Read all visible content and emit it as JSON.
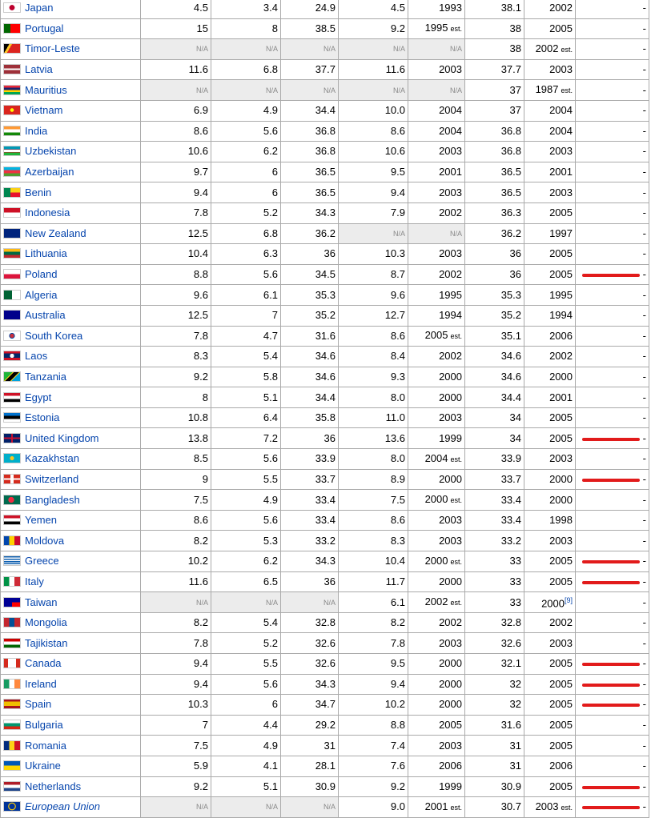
{
  "rows": [
    {
      "country": "Japan",
      "flag": "jp",
      "v1": "4.5",
      "v2": "3.4",
      "v3": "24.9",
      "v4": "4.5",
      "y1": "1993",
      "y1est": "",
      "g": "38.1",
      "y2": "2002",
      "y2est": "",
      "y2ref": "",
      "mark": "-",
      "hl": false
    },
    {
      "country": "Portugal",
      "flag": "pt",
      "v1": "15",
      "v2": "8",
      "v3": "38.5",
      "v4": "9.2",
      "y1": "1995",
      "y1est": "est.",
      "g": "38",
      "y2": "2005",
      "y2est": "",
      "y2ref": "",
      "mark": "-",
      "hl": false
    },
    {
      "country": "Timor-Leste",
      "flag": "tl",
      "v1": "N/A",
      "v2": "N/A",
      "v3": "N/A",
      "v4": "N/A",
      "y1": "N/A",
      "y1est": "",
      "g": "38",
      "y2": "2002",
      "y2est": "est.",
      "y2ref": "",
      "mark": "-",
      "hl": false
    },
    {
      "country": "Latvia",
      "flag": "lv",
      "v1": "11.6",
      "v2": "6.8",
      "v3": "37.7",
      "v4": "11.6",
      "y1": "2003",
      "y1est": "",
      "g": "37.7",
      "y2": "2003",
      "y2est": "",
      "y2ref": "",
      "mark": "-",
      "hl": false
    },
    {
      "country": "Mauritius",
      "flag": "mu",
      "v1": "N/A",
      "v2": "N/A",
      "v3": "N/A",
      "v4": "N/A",
      "y1": "N/A",
      "y1est": "",
      "g": "37",
      "y2": "1987",
      "y2est": "est.",
      "y2ref": "",
      "mark": "-",
      "hl": false
    },
    {
      "country": "Vietnam",
      "flag": "vn",
      "v1": "6.9",
      "v2": "4.9",
      "v3": "34.4",
      "v4": "10.0",
      "y1": "2004",
      "y1est": "",
      "g": "37",
      "y2": "2004",
      "y2est": "",
      "y2ref": "",
      "mark": "-",
      "hl": false
    },
    {
      "country": "India",
      "flag": "in",
      "v1": "8.6",
      "v2": "5.6",
      "v3": "36.8",
      "v4": "8.6",
      "y1": "2004",
      "y1est": "",
      "g": "36.8",
      "y2": "2004",
      "y2est": "",
      "y2ref": "",
      "mark": "-",
      "hl": false
    },
    {
      "country": "Uzbekistan",
      "flag": "uz",
      "v1": "10.6",
      "v2": "6.2",
      "v3": "36.8",
      "v4": "10.6",
      "y1": "2003",
      "y1est": "",
      "g": "36.8",
      "y2": "2003",
      "y2est": "",
      "y2ref": "",
      "mark": "-",
      "hl": false
    },
    {
      "country": "Azerbaijan",
      "flag": "az",
      "v1": "9.7",
      "v2": "6",
      "v3": "36.5",
      "v4": "9.5",
      "y1": "2001",
      "y1est": "",
      "g": "36.5",
      "y2": "2001",
      "y2est": "",
      "y2ref": "",
      "mark": "-",
      "hl": false
    },
    {
      "country": "Benin",
      "flag": "bj",
      "v1": "9.4",
      "v2": "6",
      "v3": "36.5",
      "v4": "9.4",
      "y1": "2003",
      "y1est": "",
      "g": "36.5",
      "y2": "2003",
      "y2est": "",
      "y2ref": "",
      "mark": "-",
      "hl": false
    },
    {
      "country": "Indonesia",
      "flag": "id",
      "v1": "7.8",
      "v2": "5.2",
      "v3": "34.3",
      "v4": "7.9",
      "y1": "2002",
      "y1est": "",
      "g": "36.3",
      "y2": "2005",
      "y2est": "",
      "y2ref": "",
      "mark": "-",
      "hl": false
    },
    {
      "country": "New Zealand",
      "flag": "nz",
      "v1": "12.5",
      "v2": "6.8",
      "v3": "36.2",
      "v4": "N/A",
      "y1": "N/A",
      "y1est": "",
      "g": "36.2",
      "y2": "1997",
      "y2est": "",
      "y2ref": "",
      "mark": "-",
      "hl": false
    },
    {
      "country": "Lithuania",
      "flag": "lt",
      "v1": "10.4",
      "v2": "6.3",
      "v3": "36",
      "v4": "10.3",
      "y1": "2003",
      "y1est": "",
      "g": "36",
      "y2": "2005",
      "y2est": "",
      "y2ref": "",
      "mark": "-",
      "hl": false
    },
    {
      "country": "Poland",
      "flag": "pl",
      "v1": "8.8",
      "v2": "5.6",
      "v3": "34.5",
      "v4": "8.7",
      "y1": "2002",
      "y1est": "",
      "g": "36",
      "y2": "2005",
      "y2est": "",
      "y2ref": "",
      "mark": "-",
      "hl": true
    },
    {
      "country": "Algeria",
      "flag": "dz",
      "v1": "9.6",
      "v2": "6.1",
      "v3": "35.3",
      "v4": "9.6",
      "y1": "1995",
      "y1est": "",
      "g": "35.3",
      "y2": "1995",
      "y2est": "",
      "y2ref": "",
      "mark": "-",
      "hl": false
    },
    {
      "country": "Australia",
      "flag": "au",
      "v1": "12.5",
      "v2": "7",
      "v3": "35.2",
      "v4": "12.7",
      "y1": "1994",
      "y1est": "",
      "g": "35.2",
      "y2": "1994",
      "y2est": "",
      "y2ref": "",
      "mark": "-",
      "hl": false
    },
    {
      "country": "South Korea",
      "flag": "kr",
      "v1": "7.8",
      "v2": "4.7",
      "v3": "31.6",
      "v4": "8.6",
      "y1": "2005",
      "y1est": "est.",
      "g": "35.1",
      "y2": "2006",
      "y2est": "",
      "y2ref": "",
      "mark": "-",
      "hl": false
    },
    {
      "country": "Laos",
      "flag": "la",
      "v1": "8.3",
      "v2": "5.4",
      "v3": "34.6",
      "v4": "8.4",
      "y1": "2002",
      "y1est": "",
      "g": "34.6",
      "y2": "2002",
      "y2est": "",
      "y2ref": "",
      "mark": "-",
      "hl": false
    },
    {
      "country": "Tanzania",
      "flag": "tz",
      "v1": "9.2",
      "v2": "5.8",
      "v3": "34.6",
      "v4": "9.3",
      "y1": "2000",
      "y1est": "",
      "g": "34.6",
      "y2": "2000",
      "y2est": "",
      "y2ref": "",
      "mark": "-",
      "hl": false
    },
    {
      "country": "Egypt",
      "flag": "eg",
      "v1": "8",
      "v2": "5.1",
      "v3": "34.4",
      "v4": "8.0",
      "y1": "2000",
      "y1est": "",
      "g": "34.4",
      "y2": "2001",
      "y2est": "",
      "y2ref": "",
      "mark": "-",
      "hl": false
    },
    {
      "country": "Estonia",
      "flag": "ee",
      "v1": "10.8",
      "v2": "6.4",
      "v3": "35.8",
      "v4": "11.0",
      "y1": "2003",
      "y1est": "",
      "g": "34",
      "y2": "2005",
      "y2est": "",
      "y2ref": "",
      "mark": "-",
      "hl": false
    },
    {
      "country": "United Kingdom",
      "flag": "gb",
      "v1": "13.8",
      "v2": "7.2",
      "v3": "36",
      "v4": "13.6",
      "y1": "1999",
      "y1est": "",
      "g": "34",
      "y2": "2005",
      "y2est": "",
      "y2ref": "",
      "mark": "-",
      "hl": true
    },
    {
      "country": "Kazakhstan",
      "flag": "kz",
      "v1": "8.5",
      "v2": "5.6",
      "v3": "33.9",
      "v4": "8.0",
      "y1": "2004",
      "y1est": "est.",
      "g": "33.9",
      "y2": "2003",
      "y2est": "",
      "y2ref": "",
      "mark": "-",
      "hl": false
    },
    {
      "country": "Switzerland",
      "flag": "ch",
      "v1": "9",
      "v2": "5.5",
      "v3": "33.7",
      "v4": "8.9",
      "y1": "2000",
      "y1est": "",
      "g": "33.7",
      "y2": "2000",
      "y2est": "",
      "y2ref": "",
      "mark": "-",
      "hl": true
    },
    {
      "country": "Bangladesh",
      "flag": "bd",
      "v1": "7.5",
      "v2": "4.9",
      "v3": "33.4",
      "v4": "7.5",
      "y1": "2000",
      "y1est": "est.",
      "g": "33.4",
      "y2": "2000",
      "y2est": "",
      "y2ref": "",
      "mark": "-",
      "hl": false
    },
    {
      "country": "Yemen",
      "flag": "ye",
      "v1": "8.6",
      "v2": "5.6",
      "v3": "33.4",
      "v4": "8.6",
      "y1": "2003",
      "y1est": "",
      "g": "33.4",
      "y2": "1998",
      "y2est": "",
      "y2ref": "",
      "mark": "-",
      "hl": false
    },
    {
      "country": "Moldova",
      "flag": "md",
      "v1": "8.2",
      "v2": "5.3",
      "v3": "33.2",
      "v4": "8.3",
      "y1": "2003",
      "y1est": "",
      "g": "33.2",
      "y2": "2003",
      "y2est": "",
      "y2ref": "",
      "mark": "-",
      "hl": false
    },
    {
      "country": "Greece",
      "flag": "gr",
      "v1": "10.2",
      "v2": "6.2",
      "v3": "34.3",
      "v4": "10.4",
      "y1": "2000",
      "y1est": "est.",
      "g": "33",
      "y2": "2005",
      "y2est": "",
      "y2ref": "",
      "mark": "-",
      "hl": true
    },
    {
      "country": "Italy",
      "flag": "it",
      "v1": "11.6",
      "v2": "6.5",
      "v3": "36",
      "v4": "11.7",
      "y1": "2000",
      "y1est": "",
      "g": "33",
      "y2": "2005",
      "y2est": "",
      "y2ref": "",
      "mark": "-",
      "hl": true
    },
    {
      "country": "Taiwan",
      "flag": "tw",
      "v1": "N/A",
      "v2": "N/A",
      "v3": "N/A",
      "v4": "6.1",
      "y1": "2002",
      "y1est": "est.",
      "g": "33",
      "y2": "2000",
      "y2est": "",
      "y2ref": "[9]",
      "mark": "-",
      "hl": false
    },
    {
      "country": "Mongolia",
      "flag": "mn",
      "v1": "8.2",
      "v2": "5.4",
      "v3": "32.8",
      "v4": "8.2",
      "y1": "2002",
      "y1est": "",
      "g": "32.8",
      "y2": "2002",
      "y2est": "",
      "y2ref": "",
      "mark": "-",
      "hl": false
    },
    {
      "country": "Tajikistan",
      "flag": "tj",
      "v1": "7.8",
      "v2": "5.2",
      "v3": "32.6",
      "v4": "7.8",
      "y1": "2003",
      "y1est": "",
      "g": "32.6",
      "y2": "2003",
      "y2est": "",
      "y2ref": "",
      "mark": "-",
      "hl": false
    },
    {
      "country": "Canada",
      "flag": "ca",
      "v1": "9.4",
      "v2": "5.5",
      "v3": "32.6",
      "v4": "9.5",
      "y1": "2000",
      "y1est": "",
      "g": "32.1",
      "y2": "2005",
      "y2est": "",
      "y2ref": "",
      "mark": "-",
      "hl": true
    },
    {
      "country": "Ireland",
      "flag": "ie",
      "v1": "9.4",
      "v2": "5.6",
      "v3": "34.3",
      "v4": "9.4",
      "y1": "2000",
      "y1est": "",
      "g": "32",
      "y2": "2005",
      "y2est": "",
      "y2ref": "",
      "mark": "-",
      "hl": true
    },
    {
      "country": "Spain",
      "flag": "es",
      "v1": "10.3",
      "v2": "6",
      "v3": "34.7",
      "v4": "10.2",
      "y1": "2000",
      "y1est": "",
      "g": "32",
      "y2": "2005",
      "y2est": "",
      "y2ref": "",
      "mark": "-",
      "hl": true
    },
    {
      "country": "Bulgaria",
      "flag": "bg",
      "v1": "7",
      "v2": "4.4",
      "v3": "29.2",
      "v4": "8.8",
      "y1": "2005",
      "y1est": "",
      "g": "31.6",
      "y2": "2005",
      "y2est": "",
      "y2ref": "",
      "mark": "-",
      "hl": false
    },
    {
      "country": "Romania",
      "flag": "ro",
      "v1": "7.5",
      "v2": "4.9",
      "v3": "31",
      "v4": "7.4",
      "y1": "2003",
      "y1est": "",
      "g": "31",
      "y2": "2005",
      "y2est": "",
      "y2ref": "",
      "mark": "-",
      "hl": false
    },
    {
      "country": "Ukraine",
      "flag": "ua",
      "v1": "5.9",
      "v2": "4.1",
      "v3": "28.1",
      "v4": "7.6",
      "y1": "2006",
      "y1est": "",
      "g": "31",
      "y2": "2006",
      "y2est": "",
      "y2ref": "",
      "mark": "-",
      "hl": false
    },
    {
      "country": "Netherlands",
      "flag": "nl",
      "v1": "9.2",
      "v2": "5.1",
      "v3": "30.9",
      "v4": "9.2",
      "y1": "1999",
      "y1est": "",
      "g": "30.9",
      "y2": "2005",
      "y2est": "",
      "y2ref": "",
      "mark": "-",
      "hl": true
    },
    {
      "country": "European Union",
      "flag": "eu",
      "v1": "N/A",
      "v2": "N/A",
      "v3": "N/A",
      "v4": "9.0",
      "y1": "2001",
      "y1est": "est.",
      "g": "30.7",
      "y2": "2003",
      "y2est": "est.",
      "y2ref": "",
      "mark": "-",
      "hl": true
    }
  ],
  "colors": {
    "link": "#0645ad",
    "highlight": "#e21b1b",
    "na_bg": "#ececec",
    "border": "#aaaaaa"
  }
}
